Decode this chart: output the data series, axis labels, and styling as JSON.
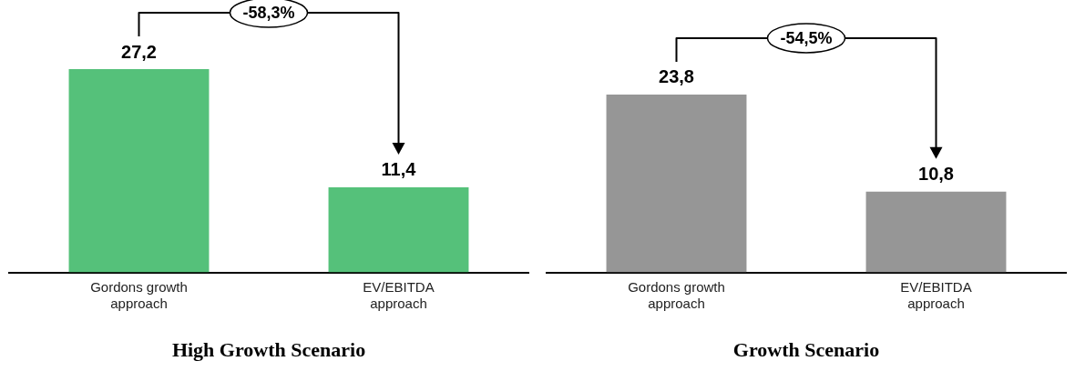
{
  "chart_data": [
    {
      "type": "bar",
      "xlabel": "High Growth Scenario",
      "categories": [
        "Gordons growth approach",
        "EV/EBITDA approach"
      ],
      "values": [
        27.2,
        11.4
      ],
      "value_labels": [
        "27,2",
        "11,4"
      ],
      "color": "#55c17a",
      "annotations": [
        "-58,3%"
      ]
    },
    {
      "type": "bar",
      "xlabel": "Growth Scenario",
      "categories": [
        "Gordons growth approach",
        "EV/EBITDA approach"
      ],
      "values": [
        23.8,
        10.8
      ],
      "value_labels": [
        "23,8",
        "10,8"
      ],
      "color": "#969696",
      "annotations": [
        "-54,5%"
      ]
    }
  ]
}
